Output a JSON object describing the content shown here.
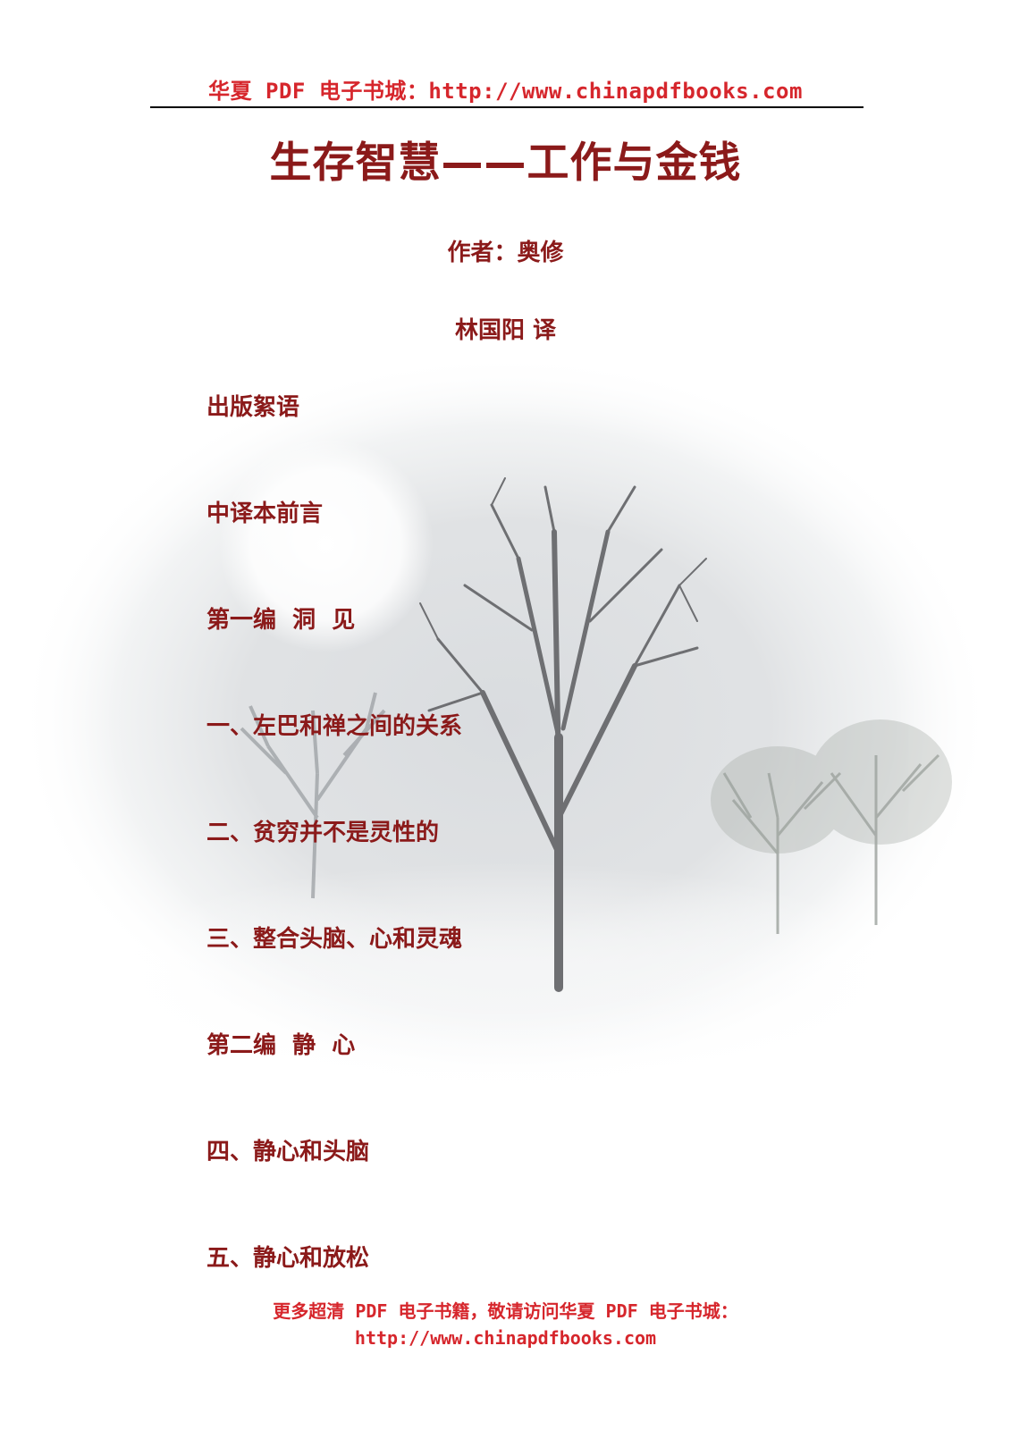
{
  "header": {
    "site_text": "华夏 PDF 电子书城：http://www.chinapdfbooks.com"
  },
  "title": "生存智慧——工作与金钱",
  "author_line": "作者：奥修",
  "translator_line": "林国阳  译",
  "toc": [
    "出版絮语",
    "中译本前言",
    "第一编  洞  见",
    "一、左巴和禅之间的关系",
    "二、贫穷并不是灵性的",
    "三、整合头脑、心和灵魂",
    "第二编  静  心",
    "四、静心和头脑",
    "五、静心和放松"
  ],
  "footer": {
    "line1": "更多超清 PDF 电子书籍，敬请访问华夏 PDF 电子书城：",
    "line2": "http://www.chinapdfbooks.com"
  },
  "colors": {
    "header_red": "#d6262c",
    "title_dark_red": "#8b1a1a"
  },
  "background_image": "misty-winter-trees-illustration"
}
